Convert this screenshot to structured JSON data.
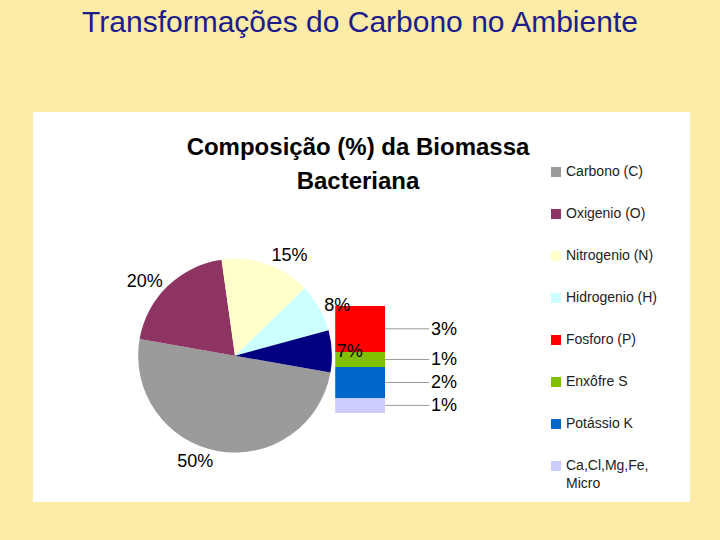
{
  "title": "Transformações do Carbono no Ambiente",
  "chart_data": {
    "type": "pie",
    "title": "Composição (%) da Biomassa Bacteriana",
    "categories": [
      "Carbono (C)",
      "Oxigenio (O)",
      "Nitrogenio (N)",
      "Hidrogenio (H)",
      null
    ],
    "values": [
      50,
      20,
      15,
      8,
      7
    ],
    "value_labels": [
      "50%",
      "20%",
      "15%",
      "8%",
      "7%"
    ],
    "colors": [
      "#9b9b9b",
      "#8e3462",
      "#ffffcc",
      "#ccffff",
      "#000080"
    ],
    "data_labels": true,
    "legend": "right",
    "breakdown": {
      "type": "bar",
      "stacked": true,
      "categories": [
        "Fosforo (P)",
        "Enxôfre S",
        "Potássio K",
        "Ca,Cl,Mg,Fe, Micro"
      ],
      "values": [
        3,
        1,
        2,
        1
      ],
      "value_labels": [
        "3%",
        "1%",
        "2%",
        "1%"
      ],
      "colors": [
        "#ff0000",
        "#80c000",
        "#0066cc",
        "#ccccff"
      ],
      "data_labels": true
    }
  }
}
